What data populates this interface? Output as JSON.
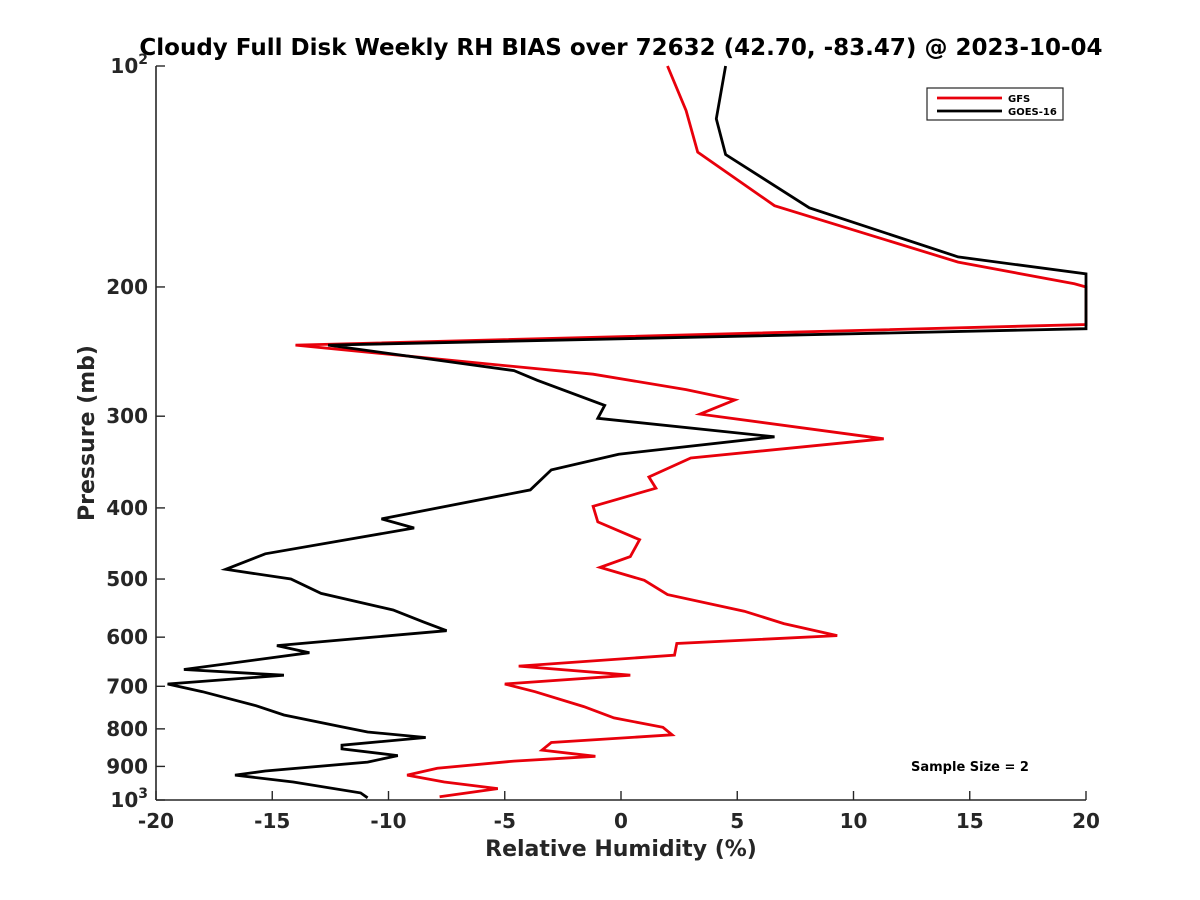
{
  "chart_data": {
    "type": "line",
    "title": "Cloudy Full Disk Weekly RH BIAS over 72632 (42.70, -83.47) @ 2023-10-04",
    "xlabel": "Relative Humidity (%)",
    "ylabel": "Pressure (mb)",
    "xlim": [
      -20,
      20
    ],
    "ylim": [
      100,
      1000
    ],
    "y_scale": "log",
    "y_reversed": true,
    "grid": false,
    "legend_position": "top-right",
    "x_ticks": [
      -20,
      -15,
      -10,
      -5,
      0,
      5,
      10,
      15,
      20
    ],
    "x_tick_labels": [
      "-20",
      "-15",
      "-10",
      "-5",
      "0",
      "5",
      "10",
      "15",
      "20"
    ],
    "y_ticks": [
      100,
      200,
      300,
      400,
      500,
      600,
      700,
      800,
      900,
      1000
    ],
    "y_tick_labels": [
      {
        "base": "10",
        "exp": "2"
      },
      {
        "base": "200",
        "exp": ""
      },
      {
        "base": "300",
        "exp": ""
      },
      {
        "base": "400",
        "exp": ""
      },
      {
        "base": "500",
        "exp": ""
      },
      {
        "base": "600",
        "exp": ""
      },
      {
        "base": "700",
        "exp": ""
      },
      {
        "base": "800",
        "exp": ""
      },
      {
        "base": "900",
        "exp": ""
      },
      {
        "base": "10",
        "exp": "3"
      }
    ],
    "annotation": "Sample Size = 2",
    "series": [
      {
        "name": "GFS",
        "color": "#e8000b",
        "points": [
          [
            2,
            100
          ],
          [
            2.8,
            115
          ],
          [
            3.3,
            131
          ],
          [
            6.6,
            155
          ],
          [
            14.5,
            185
          ],
          [
            19.5,
            198
          ],
          [
            20.2,
            200
          ],
          [
            20.2,
            225
          ],
          [
            -14,
            240
          ],
          [
            -1.2,
            263
          ],
          [
            2.8,
            276
          ],
          [
            4.9,
            285
          ],
          [
            3.4,
            298
          ],
          [
            11.3,
            322
          ],
          [
            3,
            342
          ],
          [
            1.2,
            363
          ],
          [
            1.5,
            376
          ],
          [
            -1.2,
            398
          ],
          [
            -1,
            418
          ],
          [
            0.8,
            442
          ],
          [
            0.4,
            466
          ],
          [
            -0.9,
            482
          ],
          [
            1,
            502
          ],
          [
            2,
            525
          ],
          [
            5.3,
            553
          ],
          [
            7,
            575
          ],
          [
            9.3,
            597
          ],
          [
            2.4,
            612
          ],
          [
            2.3,
            635
          ],
          [
            -4.4,
            657
          ],
          [
            0.4,
            676
          ],
          [
            -5,
            695
          ],
          [
            -3.7,
            712
          ],
          [
            -1.6,
            746
          ],
          [
            -0.3,
            773
          ],
          [
            1.8,
            796
          ],
          [
            2.2,
            815
          ],
          [
            -3,
            835
          ],
          [
            -3.4,
            855
          ],
          [
            -1.1,
            872
          ],
          [
            -4.6,
            885
          ],
          [
            -7.9,
            905
          ],
          [
            -9.2,
            925
          ],
          [
            -7.6,
            945
          ],
          [
            -5.3,
            965
          ],
          [
            -7.8,
            990
          ]
        ]
      },
      {
        "name": "GOES-16",
        "color": "#000000",
        "points": [
          [
            4.5,
            100
          ],
          [
            4.1,
            118
          ],
          [
            4.5,
            132
          ],
          [
            8.1,
            156
          ],
          [
            14.5,
            182
          ],
          [
            20,
            192
          ],
          [
            20.3,
            228
          ],
          [
            -12.6,
            240
          ],
          [
            -4.6,
            260
          ],
          [
            -3.6,
            268
          ],
          [
            -0.7,
            290
          ],
          [
            -1,
            302
          ],
          [
            6.6,
            320
          ],
          [
            -0.1,
            338
          ],
          [
            -3,
            355
          ],
          [
            -3.9,
            378
          ],
          [
            -10.3,
            414
          ],
          [
            -8.9,
            426
          ],
          [
            -15.3,
            462
          ],
          [
            -17,
            485
          ],
          [
            -14.2,
            500
          ],
          [
            -12.9,
            523
          ],
          [
            -9.8,
            551
          ],
          [
            -8.5,
            572
          ],
          [
            -7.5,
            588
          ],
          [
            -14.8,
            616
          ],
          [
            -13.4,
            630
          ],
          [
            -18.8,
            664
          ],
          [
            -14.5,
            676
          ],
          [
            -19.5,
            695
          ],
          [
            -18,
            712
          ],
          [
            -15.7,
            744
          ],
          [
            -14.5,
            766
          ],
          [
            -12,
            795
          ],
          [
            -10.9,
            808
          ],
          [
            -8.4,
            822
          ],
          [
            -12,
            842
          ],
          [
            -12,
            852
          ],
          [
            -9.6,
            870
          ],
          [
            -10.9,
            888
          ],
          [
            -15.3,
            913
          ],
          [
            -16.6,
            925
          ],
          [
            -14.1,
            945
          ],
          [
            -11.2,
            978
          ],
          [
            -10.9,
            993
          ]
        ]
      }
    ]
  }
}
